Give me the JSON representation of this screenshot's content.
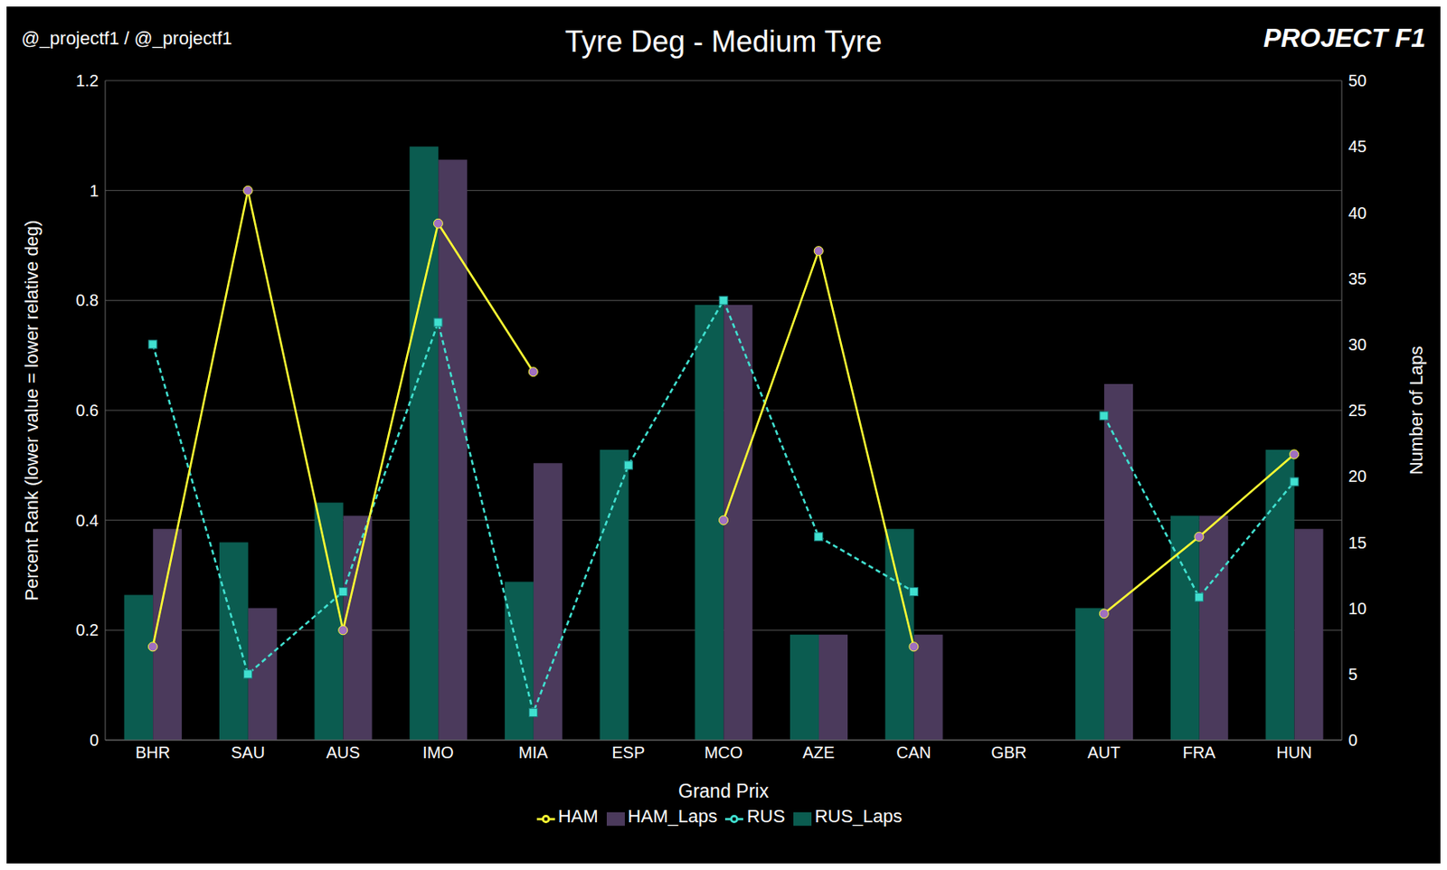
{
  "chart_data": {
    "type": "bar",
    "title": "Tyre Deg - Medium Tyre",
    "annotations": [
      "@_projectf1 / @_projectf1",
      "PROJECT F1"
    ],
    "x_label": "Grand Prix",
    "y_label": "Percent Rank (lower value = lower relative deg)",
    "y2_label": "Number of Laps",
    "categories": [
      "BHR",
      "SAU",
      "AUS",
      "IMO",
      "MIA",
      "ESP",
      "MCO",
      "AZE",
      "CAN",
      "GBR",
      "AUT",
      "FRA",
      "HUN"
    ],
    "series": [
      {
        "name": "RUS_Laps",
        "type": "bar",
        "axis": "y2",
        "color": "#0b5c50",
        "values": [
          11,
          15,
          18,
          45,
          12,
          22,
          33,
          8,
          16,
          null,
          10,
          17,
          22
        ]
      },
      {
        "name": "HAM_Laps",
        "type": "bar",
        "axis": "y2",
        "color": "#4b3a5c",
        "values": [
          16,
          10,
          17,
          44,
          21,
          null,
          33,
          8,
          8,
          null,
          27,
          17,
          16
        ]
      },
      {
        "name": "RUS",
        "type": "line",
        "color": "#40e0d0",
        "marker": "square",
        "line_style": "dashed",
        "values": [
          0.72,
          0.12,
          0.27,
          0.76,
          0.05,
          0.5,
          0.8,
          0.37,
          0.27,
          null,
          0.59,
          0.26,
          0.47
        ]
      },
      {
        "name": "HAM",
        "type": "line",
        "color": "#ffff33",
        "marker": "circle",
        "line_style": "solid",
        "values": [
          0.17,
          1.0,
          0.2,
          0.94,
          0.67,
          null,
          0.4,
          0.89,
          0.17,
          null,
          0.23,
          0.37,
          0.52
        ]
      }
    ],
    "ylim": [
      0,
      1.2
    ],
    "yticks": [
      0,
      0.2,
      0.4,
      0.6,
      0.8,
      1,
      1.2
    ],
    "y2lim": [
      0,
      50
    ],
    "y2ticks": [
      0,
      5,
      10,
      15,
      20,
      25,
      30,
      35,
      40,
      45,
      50
    ],
    "grid": true,
    "legend": "bottom"
  }
}
